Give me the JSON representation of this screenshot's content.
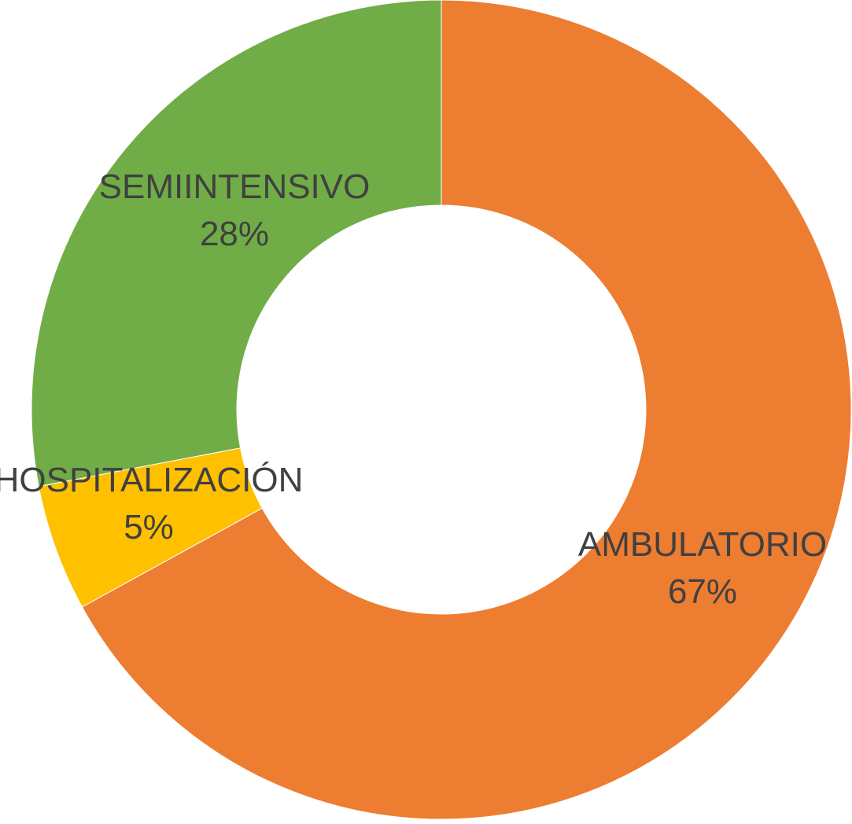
{
  "chart_data": {
    "type": "pie",
    "variant": "donut",
    "start": "12 o'clock, clockwise",
    "slices": [
      {
        "label": "AMBULATORIO",
        "value": 67,
        "value_label": "67%",
        "color": "#ED7D31"
      },
      {
        "label": "HOSPITALIZACIÓN",
        "value": 5,
        "value_label": "5%",
        "color": "#FFC000"
      },
      {
        "label": "SEMIINTENSIVO",
        "value": 28,
        "value_label": "28%",
        "color": "#70AD47"
      }
    ],
    "legend": "none",
    "data_labels": "category name and percentage"
  }
}
